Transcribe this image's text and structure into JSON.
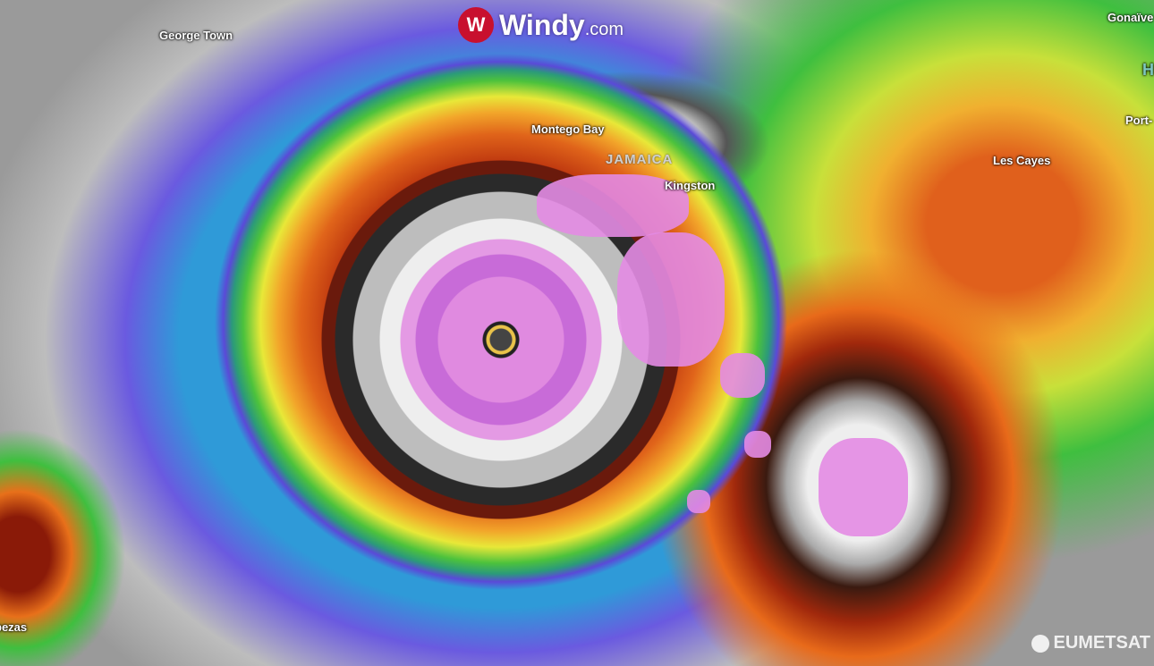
{
  "brand": {
    "logo_text": "Windy",
    "logo_suffix": ".com",
    "logo_icon": "windy-logo-icon",
    "accent": "#c8102e"
  },
  "attribution": {
    "text": "EUMETSAT",
    "icon": "eumetsat-logo-icon"
  },
  "map": {
    "layer": "satellite infrared",
    "labels": {
      "george_town": "George Town",
      "montego_bay": "Montego Bay",
      "jamaica": "JAMAICA",
      "kingston": "Kingston",
      "gonaives": "Gonaïve",
      "haiti": "H",
      "port": "Port-",
      "les_cayes": "Les Cayes",
      "cabezas": "bezas"
    }
  }
}
